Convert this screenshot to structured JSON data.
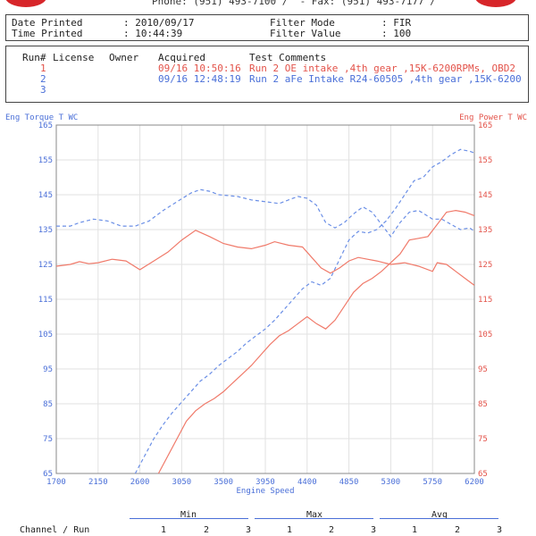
{
  "header": {
    "contact_line": "Phone: (951) 493-7100 /  - Fax: (951) 493-7177 /",
    "date_printed_label": "Date Printed",
    "date_printed_value": ": 2010/09/17",
    "time_printed_label": "Time Printed",
    "time_printed_value": ": 10:44:39",
    "filter_mode_label": "Filter Mode",
    "filter_mode_value": ": FIR",
    "filter_value_label": "Filter Value",
    "filter_value_value": ": 100"
  },
  "runs": {
    "columns": [
      "Run#",
      "License",
      "Owner",
      "Acquired",
      "Test Comments"
    ],
    "rows": [
      {
        "run": "1",
        "acquired": "09/16 10:50:16",
        "comment": "Run 2 OE intake ,4th gear ,15K-6200RPMs, OBD2",
        "color": "#e3534a"
      },
      {
        "run": "2",
        "acquired": "09/16 12:48:19",
        "comment": "Run 2 aFe Intake R24-60505 ,4th gear ,15K-6200",
        "color": "#4a6fd8"
      },
      {
        "run": "3",
        "acquired": "",
        "comment": "",
        "color": "#4a6fd8"
      }
    ]
  },
  "stats": {
    "channel_label": "Channel / Run",
    "groups": [
      "Min",
      "Max",
      "Avg"
    ],
    "run_numbers": [
      "1",
      "2",
      "3"
    ]
  },
  "chart_data": {
    "type": "line",
    "xlabel": "Engine Speed",
    "ylabel_left": "Eng Torque T WC",
    "ylabel_right": "Eng Power T WC",
    "xlim": [
      1700,
      6200
    ],
    "ylim": [
      65,
      165
    ],
    "x_ticks": [
      1700,
      2150,
      2600,
      3050,
      3500,
      3950,
      4400,
      4850,
      5300,
      5750,
      6200
    ],
    "y_ticks": [
      65,
      75,
      85,
      95,
      105,
      115,
      125,
      135,
      145,
      155,
      165
    ],
    "grid": true,
    "colors": {
      "run1": "#f07a6a",
      "run2": "#6b8fe6",
      "axis_left": "#4a6fd8",
      "axis_right": "#e3534a"
    },
    "series": [
      {
        "run": "1",
        "quantity": "torque",
        "color": "#f07a6a",
        "dash": false,
        "points": [
          [
            1700,
            124.5
          ],
          [
            1850,
            125.0
          ],
          [
            1950,
            125.8
          ],
          [
            2050,
            125.2
          ],
          [
            2150,
            125.5
          ],
          [
            2300,
            126.5
          ],
          [
            2450,
            126.0
          ],
          [
            2600,
            123.5
          ],
          [
            2750,
            126.0
          ],
          [
            2900,
            128.5
          ],
          [
            3050,
            132.0
          ],
          [
            3200,
            134.8
          ],
          [
            3350,
            133.0
          ],
          [
            3500,
            131.0
          ],
          [
            3650,
            130.0
          ],
          [
            3800,
            129.5
          ],
          [
            3950,
            130.5
          ],
          [
            4050,
            131.5
          ],
          [
            4200,
            130.5
          ],
          [
            4350,
            130.0
          ],
          [
            4450,
            127.0
          ],
          [
            4550,
            124.0
          ],
          [
            4650,
            122.5
          ],
          [
            4750,
            124.0
          ],
          [
            4850,
            126.0
          ],
          [
            4950,
            127.0
          ],
          [
            5050,
            126.5
          ],
          [
            5150,
            126.0
          ],
          [
            5300,
            125.0
          ],
          [
            5450,
            125.5
          ],
          [
            5600,
            124.5
          ],
          [
            5750,
            123.0
          ],
          [
            5800,
            125.5
          ],
          [
            5900,
            125.0
          ],
          [
            6000,
            123.0
          ],
          [
            6100,
            121.0
          ],
          [
            6200,
            119.0
          ]
        ]
      },
      {
        "run": "2",
        "quantity": "torque",
        "color": "#6b8fe6",
        "dash": true,
        "points": [
          [
            1700,
            136.0
          ],
          [
            1850,
            136.0
          ],
          [
            1950,
            137.0
          ],
          [
            2100,
            138.0
          ],
          [
            2250,
            137.5
          ],
          [
            2400,
            136.0
          ],
          [
            2550,
            136.0
          ],
          [
            2700,
            137.5
          ],
          [
            2850,
            140.5
          ],
          [
            3000,
            143.0
          ],
          [
            3150,
            145.5
          ],
          [
            3250,
            146.5
          ],
          [
            3350,
            146.0
          ],
          [
            3450,
            145.0
          ],
          [
            3650,
            144.5
          ],
          [
            3800,
            143.5
          ],
          [
            3950,
            143.0
          ],
          [
            4100,
            142.5
          ],
          [
            4200,
            143.5
          ],
          [
            4300,
            144.5
          ],
          [
            4400,
            144.0
          ],
          [
            4500,
            142.0
          ],
          [
            4600,
            137.0
          ],
          [
            4700,
            135.5
          ],
          [
            4800,
            137.0
          ],
          [
            4900,
            139.5
          ],
          [
            5000,
            141.5
          ],
          [
            5100,
            140.0
          ],
          [
            5200,
            136.5
          ],
          [
            5300,
            133.0
          ],
          [
            5400,
            137.0
          ],
          [
            5500,
            140.0
          ],
          [
            5600,
            140.5
          ],
          [
            5750,
            138.0
          ],
          [
            5850,
            138.0
          ],
          [
            5950,
            136.5
          ],
          [
            6050,
            135.0
          ],
          [
            6150,
            135.5
          ],
          [
            6200,
            134.5
          ]
        ]
      },
      {
        "run": "1",
        "quantity": "power",
        "color": "#f07a6a",
        "dash": false,
        "points": [
          [
            2800,
            65.0
          ],
          [
            2900,
            70.0
          ],
          [
            3000,
            75.0
          ],
          [
            3100,
            80.0
          ],
          [
            3200,
            83.0
          ],
          [
            3300,
            85.0
          ],
          [
            3400,
            86.5
          ],
          [
            3500,
            88.5
          ],
          [
            3600,
            91.0
          ],
          [
            3700,
            93.5
          ],
          [
            3800,
            96.0
          ],
          [
            3900,
            99.0
          ],
          [
            4000,
            102.0
          ],
          [
            4100,
            104.5
          ],
          [
            4200,
            106.0
          ],
          [
            4300,
            108.0
          ],
          [
            4400,
            110.0
          ],
          [
            4500,
            108.0
          ],
          [
            4600,
            106.5
          ],
          [
            4700,
            109.0
          ],
          [
            4800,
            113.0
          ],
          [
            4900,
            117.0
          ],
          [
            5000,
            119.5
          ],
          [
            5100,
            121.0
          ],
          [
            5200,
            123.0
          ],
          [
            5300,
            125.5
          ],
          [
            5400,
            128.0
          ],
          [
            5500,
            132.0
          ],
          [
            5600,
            132.5
          ],
          [
            5700,
            133.0
          ],
          [
            5800,
            136.5
          ],
          [
            5900,
            140.0
          ],
          [
            6000,
            140.5
          ],
          [
            6100,
            140.0
          ],
          [
            6200,
            139.0
          ]
        ]
      },
      {
        "run": "2",
        "quantity": "power",
        "color": "#6b8fe6",
        "dash": true,
        "points": [
          [
            2550,
            65.0
          ],
          [
            2650,
            70.0
          ],
          [
            2750,
            75.0
          ],
          [
            2850,
            79.0
          ],
          [
            2950,
            82.5
          ],
          [
            3050,
            85.5
          ],
          [
            3150,
            88.5
          ],
          [
            3250,
            91.5
          ],
          [
            3350,
            93.5
          ],
          [
            3450,
            96.0
          ],
          [
            3550,
            98.0
          ],
          [
            3650,
            100.0
          ],
          [
            3750,
            102.5
          ],
          [
            3850,
            104.5
          ],
          [
            3950,
            106.5
          ],
          [
            4050,
            109.0
          ],
          [
            4150,
            112.0
          ],
          [
            4250,
            115.0
          ],
          [
            4350,
            118.0
          ],
          [
            4450,
            120.0
          ],
          [
            4550,
            119.0
          ],
          [
            4650,
            121.0
          ],
          [
            4750,
            126.5
          ],
          [
            4850,
            132.0
          ],
          [
            4950,
            134.5
          ],
          [
            5050,
            134.0
          ],
          [
            5150,
            135.0
          ],
          [
            5250,
            137.5
          ],
          [
            5350,
            141.0
          ],
          [
            5450,
            145.0
          ],
          [
            5550,
            149.0
          ],
          [
            5650,
            150.0
          ],
          [
            5750,
            153.0
          ],
          [
            5850,
            154.5
          ],
          [
            5950,
            156.5
          ],
          [
            6050,
            158.0
          ],
          [
            6150,
            157.5
          ],
          [
            6200,
            157.0
          ]
        ]
      }
    ]
  }
}
